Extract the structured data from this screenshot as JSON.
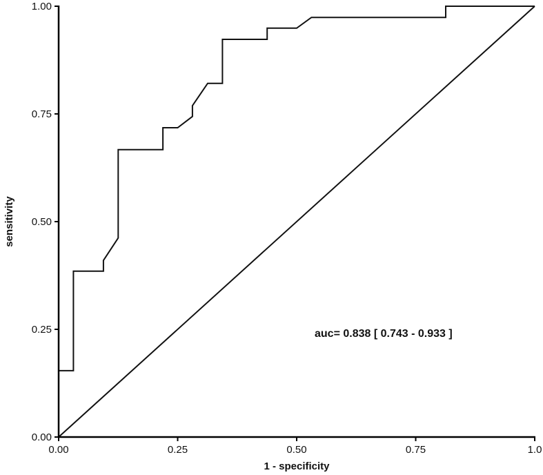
{
  "chart_data": {
    "type": "line",
    "title": "",
    "xlabel": "1 - specificity",
    "ylabel": "sensitivity",
    "xlim": [
      0,
      1
    ],
    "ylim": [
      0,
      1
    ],
    "grid": false,
    "x_ticks": [
      0,
      0.25,
      0.5,
      0.75,
      1.0
    ],
    "x_tick_labels": [
      "0.00",
      "0.25",
      "0.50",
      "0.75",
      "1.0"
    ],
    "y_ticks": [
      0,
      0.25,
      0.5,
      0.75,
      1.0
    ],
    "y_tick_labels": [
      "0.00",
      "0.25",
      "0.50",
      "0.75",
      "1.00"
    ],
    "annotation": "auc= 0.838 [ 0.743 - 0.933 ]",
    "series": [
      {
        "x": [
          0,
          0,
          0.031,
          0.031,
          0.094,
          0.094,
          0.125,
          0.125,
          0.219,
          0.219,
          0.25,
          0.281,
          0.281,
          0.313,
          0.344,
          0.344,
          0.438,
          0.438,
          0.5,
          0.531,
          0.813,
          0.813,
          1.0
        ],
        "y": [
          0,
          0.154,
          0.154,
          0.385,
          0.385,
          0.41,
          0.462,
          0.667,
          0.667,
          0.718,
          0.718,
          0.744,
          0.769,
          0.821,
          0.821,
          0.923,
          0.923,
          0.949,
          0.949,
          0.974,
          0.974,
          1.0,
          1.0
        ]
      },
      {
        "x": [
          0,
          1
        ],
        "y": [
          0,
          1
        ]
      }
    ]
  }
}
